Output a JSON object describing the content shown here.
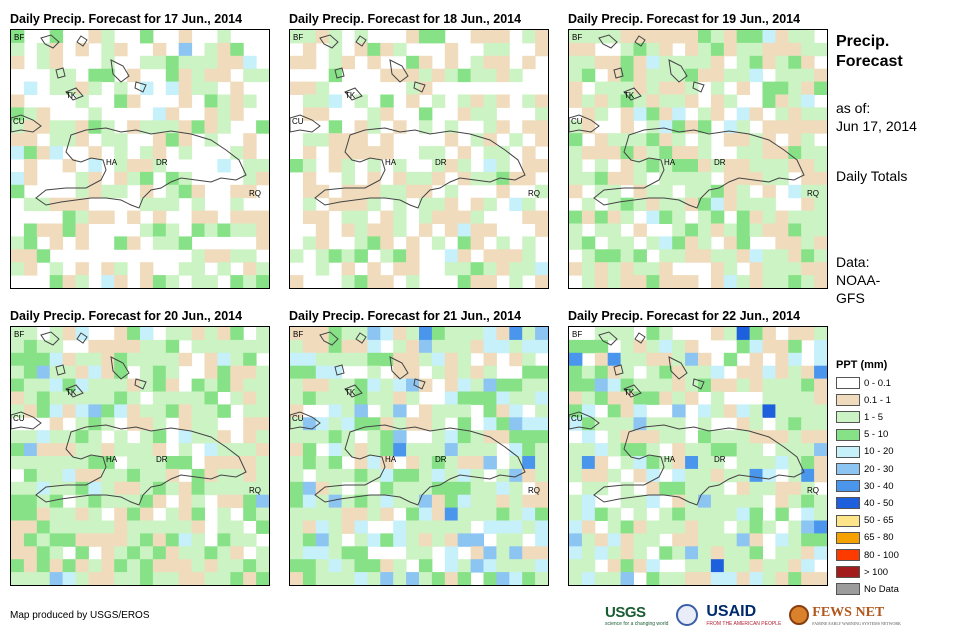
{
  "panels": [
    {
      "title": "Daily Precip. Forecast for 17 Jun., 2014",
      "seed": 17,
      "profile": "d17"
    },
    {
      "title": "Daily Precip. Forecast for 18 Jun., 2014",
      "seed": 18,
      "profile": "d18"
    },
    {
      "title": "Daily Precip. Forecast for 19 Jun., 2014",
      "seed": 19,
      "profile": "d19"
    },
    {
      "title": "Daily Precip. Forecast for 20 Jun., 2014",
      "seed": 20,
      "profile": "d20"
    },
    {
      "title": "Daily Precip. Forecast for 21 Jun., 2014",
      "seed": 21,
      "profile": "d21"
    },
    {
      "title": "Daily Precip. Forecast for 22 Jun., 2014",
      "seed": 22,
      "profile": "d22"
    }
  ],
  "map_labels": [
    "BF",
    "TK",
    "CU",
    "HA",
    "DR",
    "RQ"
  ],
  "side": {
    "title": "Precip. Forecast",
    "as_of_label": "as of:",
    "as_of_date": "Jun 17, 2014",
    "totals": "Daily Totals",
    "data_source": "Data: NOAA-GFS"
  },
  "legend": {
    "title": "PPT (mm)",
    "items": [
      {
        "label": "0 - 0.1",
        "color": "#ffffff"
      },
      {
        "label": "0.1 - 1",
        "color": "#f0dcbc"
      },
      {
        "label": "1 - 5",
        "color": "#ccf3c4"
      },
      {
        "label": "5 - 10",
        "color": "#87e287"
      },
      {
        "label": "10 - 20",
        "color": "#c6f0fa"
      },
      {
        "label": "20 - 30",
        "color": "#8cc4f2"
      },
      {
        "label": "30 - 40",
        "color": "#4a96ec"
      },
      {
        "label": "40 - 50",
        "color": "#1e5fdd"
      },
      {
        "label": "50 - 65",
        "color": "#fde68a"
      },
      {
        "label": "65 - 80",
        "color": "#f5a200"
      },
      {
        "label": "80 - 100",
        "color": "#fb3b00"
      },
      {
        "label": "> 100",
        "color": "#a31c1c"
      },
      {
        "label": "No Data",
        "color": "#9c9c9c"
      }
    ]
  },
  "footer": "Map produced by USGS/EROS",
  "logos": {
    "usgs": "USGS",
    "usgs_tagline": "science for a changing world",
    "usaid": "USAID",
    "usaid_tagline": "FROM THE AMERICAN PEOPLE",
    "fews": "FEWS NET",
    "fews_tagline": "FAMINE EARLY WARNING SYSTEMS NETWORK"
  }
}
